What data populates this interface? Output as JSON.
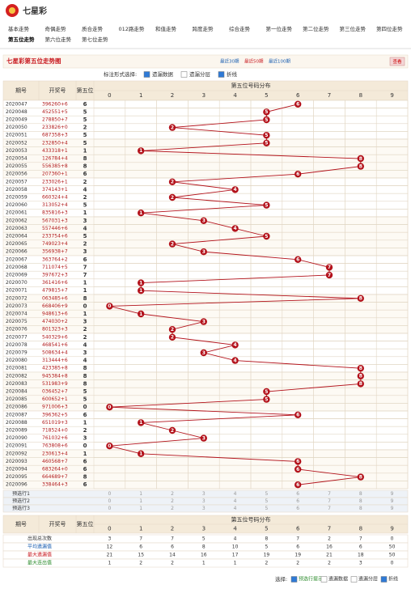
{
  "header": {
    "title": "七星彩"
  },
  "nav": {
    "items": [
      "基本走势",
      "奇偶走势",
      "质合走势",
      "012路走势",
      "和值走势",
      "跨度走势",
      "综合走势",
      "第一位走势",
      "第二位走势",
      "第三位走势",
      "第四位走势",
      "第五位走势",
      "第六位走势",
      "第七位走势"
    ],
    "active": 11
  },
  "page": {
    "title": "七星彩第五位走势图",
    "ranges": [
      "最近30期",
      "最近50期",
      "最近100期"
    ],
    "view": "查看"
  },
  "controls": {
    "label": "标注形式选择:",
    "options": [
      "遗漏数据",
      "遗漏分层",
      "折线"
    ]
  },
  "table": {
    "headers": {
      "issue": "期号",
      "draw": "开奖号",
      "pos": "第五位",
      "dist": "第五位号码分布"
    },
    "digits": [
      0,
      1,
      2,
      3,
      4,
      5,
      6,
      7,
      8,
      9
    ],
    "rows": [
      {
        "issue": "2020047",
        "draw": "396260+6",
        "pos5": 6
      },
      {
        "issue": "2020048",
        "draw": "452551+5",
        "pos5": 5
      },
      {
        "issue": "2020049",
        "draw": "278850+7",
        "pos5": 5
      },
      {
        "issue": "2020050",
        "draw": "233826+0",
        "pos5": 2
      },
      {
        "issue": "2020051",
        "draw": "687358+3",
        "pos5": 5
      },
      {
        "issue": "2020052",
        "draw": "232850+4",
        "pos5": 5
      },
      {
        "issue": "2020053",
        "draw": "433318+1",
        "pos5": 1
      },
      {
        "issue": "2020054",
        "draw": "126784+4",
        "pos5": 8
      },
      {
        "issue": "2020055",
        "draw": "556385+8",
        "pos5": 8
      },
      {
        "issue": "2020056",
        "draw": "207360+1",
        "pos5": 6
      },
      {
        "issue": "2020057",
        "draw": "233026+1",
        "pos5": 2
      },
      {
        "issue": "2020058",
        "draw": "374143+1",
        "pos5": 4
      },
      {
        "issue": "2020059",
        "draw": "660324+4",
        "pos5": 2
      },
      {
        "issue": "2020060",
        "draw": "313052+4",
        "pos5": 5
      },
      {
        "issue": "2020061",
        "draw": "835816+3",
        "pos5": 1
      },
      {
        "issue": "2020062",
        "draw": "567031+3",
        "pos5": 3
      },
      {
        "issue": "2020063",
        "draw": "557446+6",
        "pos5": 4
      },
      {
        "issue": "2020064",
        "draw": "233754+6",
        "pos5": 5
      },
      {
        "issue": "2020065",
        "draw": "749023+4",
        "pos5": 2
      },
      {
        "issue": "2020066",
        "draw": "356938+7",
        "pos5": 3
      },
      {
        "issue": "2020067",
        "draw": "363764+2",
        "pos5": 6
      },
      {
        "issue": "2020068",
        "draw": "711074+5",
        "pos5": 7
      },
      {
        "issue": "2020069",
        "draw": "397672+3",
        "pos5": 7
      },
      {
        "issue": "2020070",
        "draw": "361416+6",
        "pos5": 1
      },
      {
        "issue": "2020071",
        "draw": "479815+7",
        "pos5": 1
      },
      {
        "issue": "2020072",
        "draw": "063485+6",
        "pos5": 8
      },
      {
        "issue": "2020073",
        "draw": "668406+9",
        "pos5": 0
      },
      {
        "issue": "2020074",
        "draw": "948613+6",
        "pos5": 1
      },
      {
        "issue": "2020075",
        "draw": "474030+2",
        "pos5": 3
      },
      {
        "issue": "2020076",
        "draw": "801323+3",
        "pos5": 2
      },
      {
        "issue": "2020077",
        "draw": "540329+6",
        "pos5": 2
      },
      {
        "issue": "2020078",
        "draw": "468541+6",
        "pos5": 4
      },
      {
        "issue": "2020079",
        "draw": "508634+4",
        "pos5": 3
      },
      {
        "issue": "2020080",
        "draw": "313444+6",
        "pos5": 4
      },
      {
        "issue": "2020081",
        "draw": "423385+8",
        "pos5": 8
      },
      {
        "issue": "2020082",
        "draw": "945384+8",
        "pos5": 8
      },
      {
        "issue": "2020083",
        "draw": "531983+9",
        "pos5": 8
      },
      {
        "issue": "2020084",
        "draw": "036452+7",
        "pos5": 5
      },
      {
        "issue": "2020085",
        "draw": "600652+1",
        "pos5": 5
      },
      {
        "issue": "2020086",
        "draw": "971006+3",
        "pos5": 0
      },
      {
        "issue": "2020087",
        "draw": "396362+5",
        "pos5": 6
      },
      {
        "issue": "2020088",
        "draw": "651019+3",
        "pos5": 1
      },
      {
        "issue": "2020089",
        "draw": "718524+0",
        "pos5": 2
      },
      {
        "issue": "2020090",
        "draw": "761032+6",
        "pos5": 3
      },
      {
        "issue": "2020091",
        "draw": "763808+6",
        "pos5": 0
      },
      {
        "issue": "2020092",
        "draw": "230613+4",
        "pos5": 1
      },
      {
        "issue": "2020093",
        "draw": "460568+7",
        "pos5": 6
      },
      {
        "issue": "2020094",
        "draw": "683264+0",
        "pos5": 6
      },
      {
        "issue": "2020095",
        "draw": "664689+7",
        "pos5": 8
      },
      {
        "issue": "2020096",
        "draw": "338464+3",
        "pos5": 6
      }
    ],
    "preselect": [
      "预选行1",
      "预选行2",
      "预选行3"
    ],
    "stats": [
      {
        "label": "出现总次数",
        "values": [
          3,
          7,
          7,
          5,
          4,
          8,
          7,
          2,
          7,
          0
        ]
      },
      {
        "label": "平均遗漏值",
        "values": [
          12,
          6,
          6,
          8,
          10,
          5,
          6,
          16,
          6,
          50
        ]
      },
      {
        "label": "最大遗漏值",
        "values": [
          21,
          15,
          14,
          16,
          17,
          19,
          19,
          21,
          18,
          50
        ]
      },
      {
        "label": "最大连出值",
        "values": [
          1,
          2,
          2,
          1,
          1,
          2,
          2,
          2,
          3,
          0
        ]
      }
    ]
  },
  "footer": {
    "label": "选择:",
    "options": [
      "预选行提示",
      "遗漏数据",
      "遗漏分层",
      "折线"
    ]
  }
}
